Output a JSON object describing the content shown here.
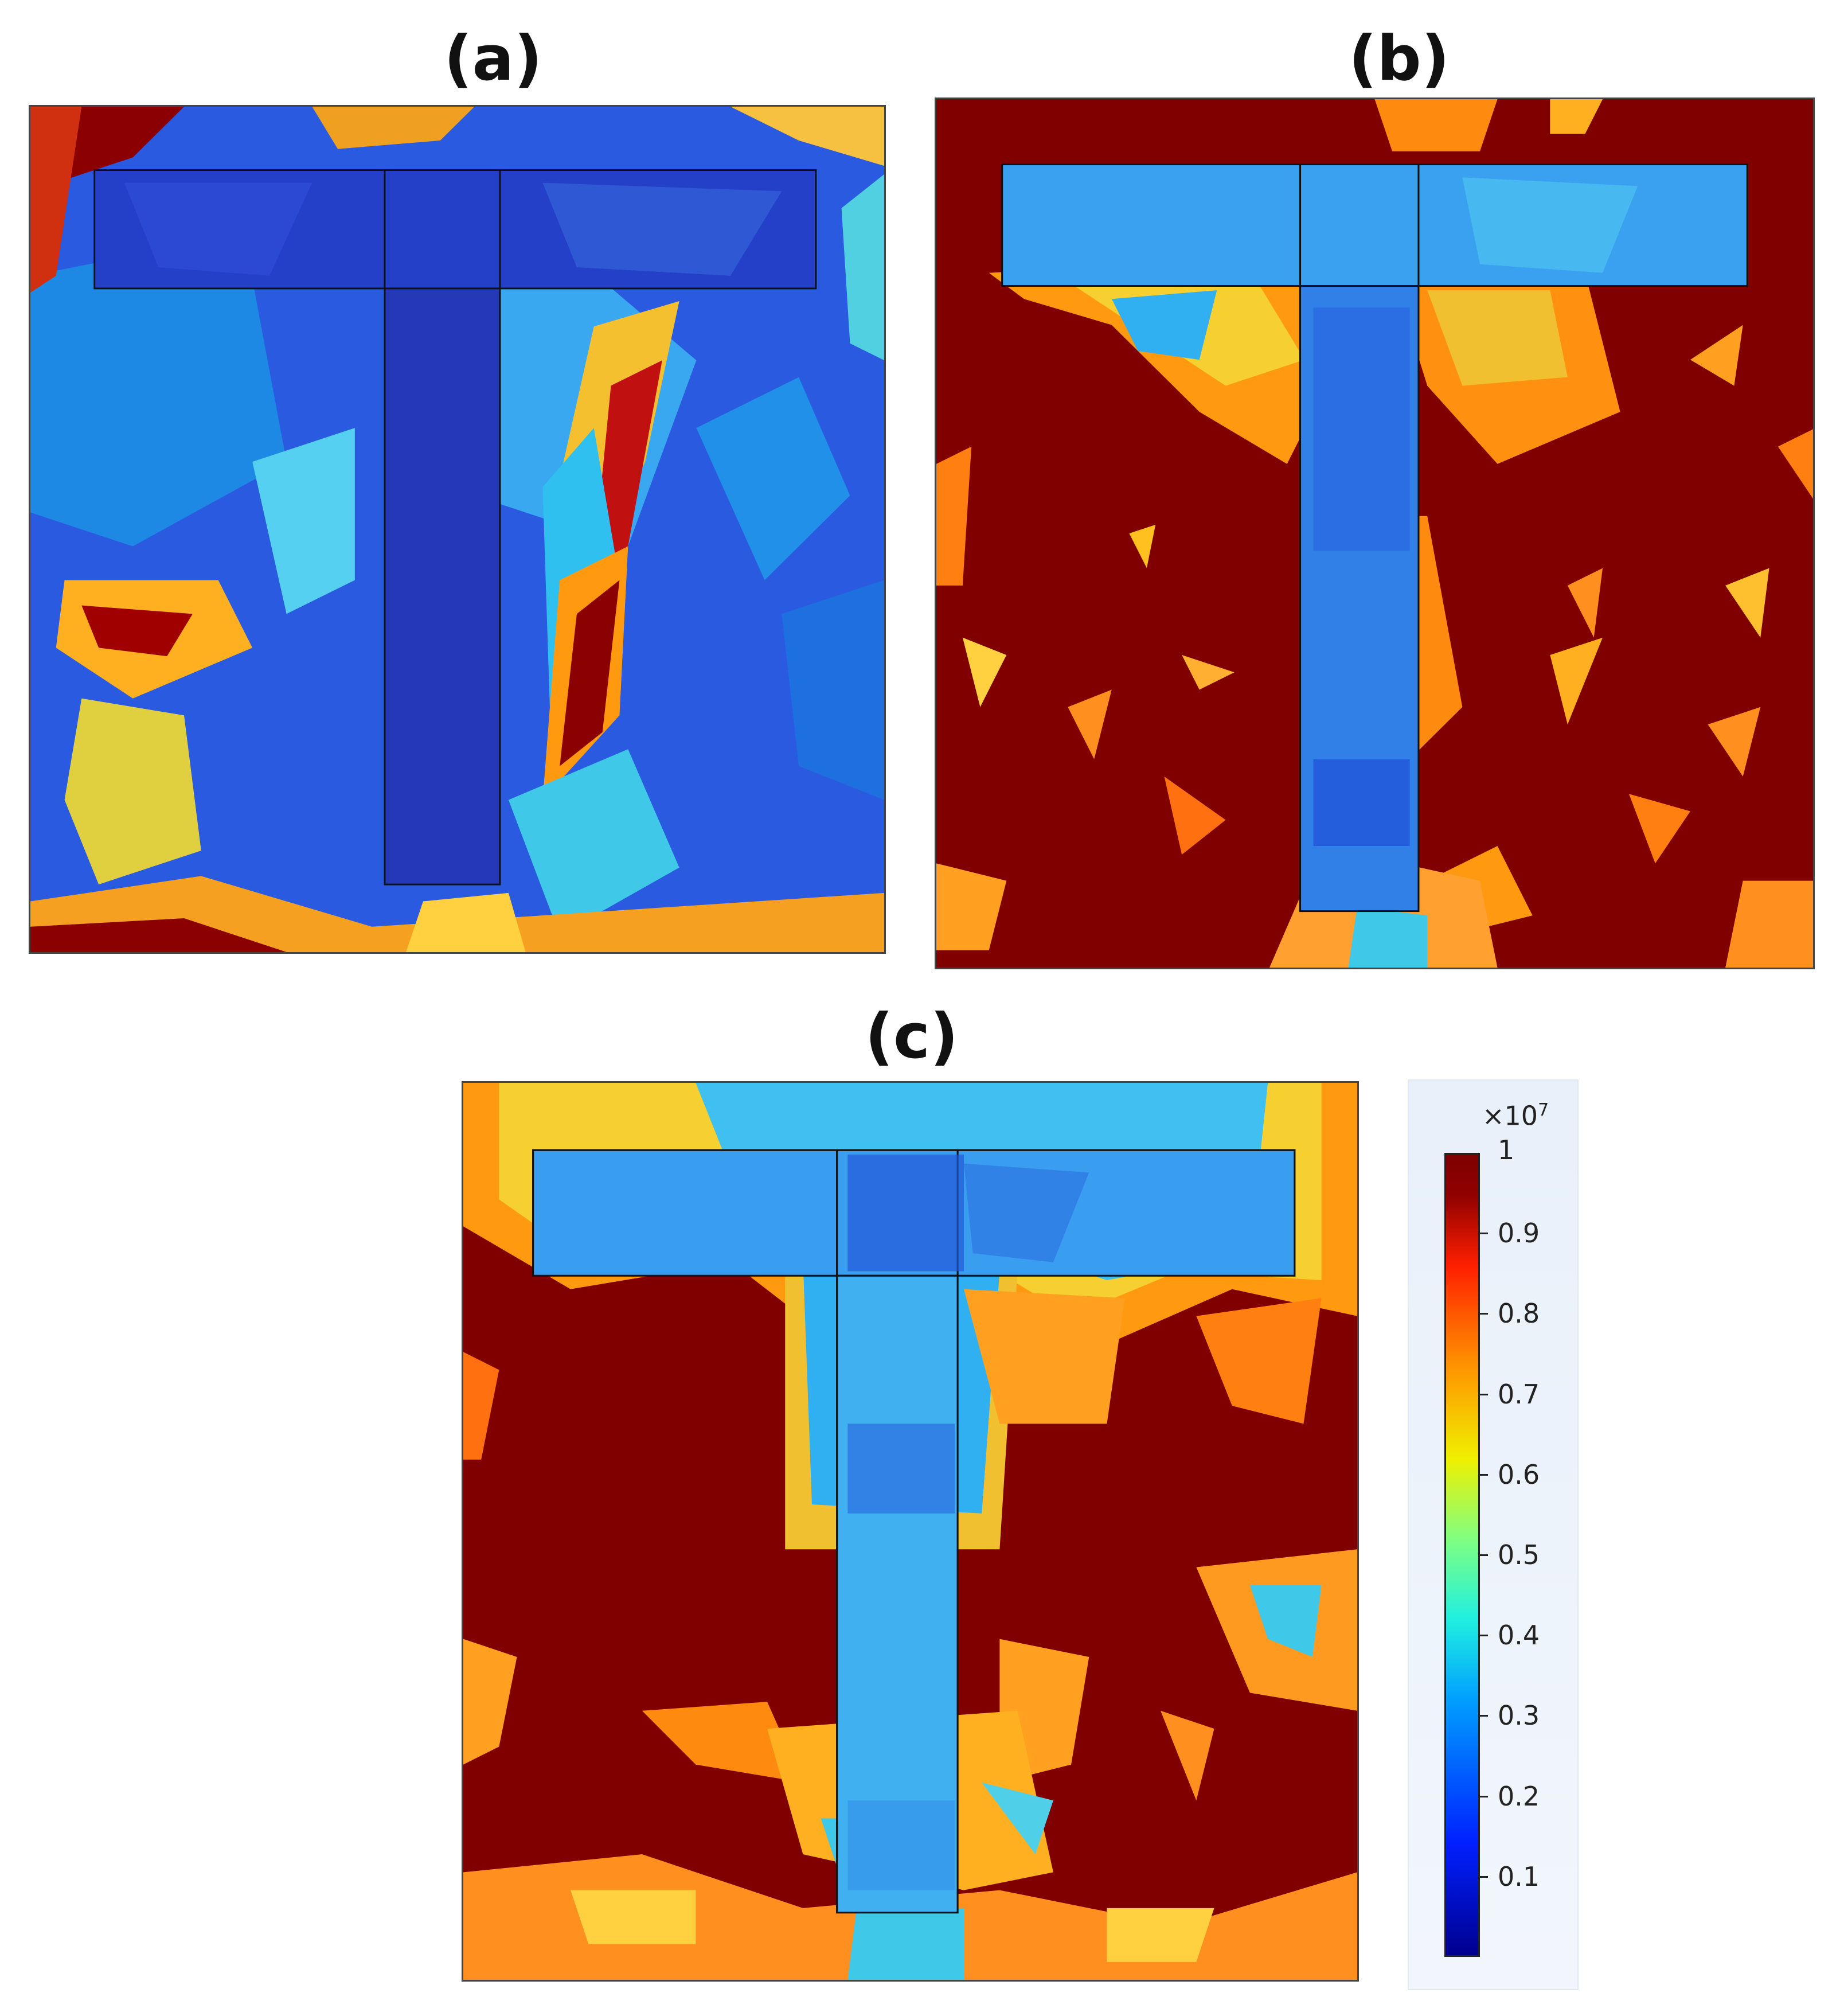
{
  "panels": [
    {
      "label": "(a)"
    },
    {
      "label": "(b)"
    },
    {
      "label": "(c)"
    }
  ],
  "colorbar": {
    "multiplier_base": "×10",
    "multiplier_exp": "7",
    "max_label": "1",
    "ticks": [
      "0.9",
      "0.8",
      "0.7",
      "0.6",
      "0.5",
      "0.4",
      "0.3",
      "0.2",
      "0.1"
    ],
    "colors": [
      "#00008f",
      "#0020ff",
      "#00a0ff",
      "#20f0e0",
      "#80ff80",
      "#f0f000",
      "#ff9000",
      "#ff2000",
      "#800000"
    ]
  }
}
